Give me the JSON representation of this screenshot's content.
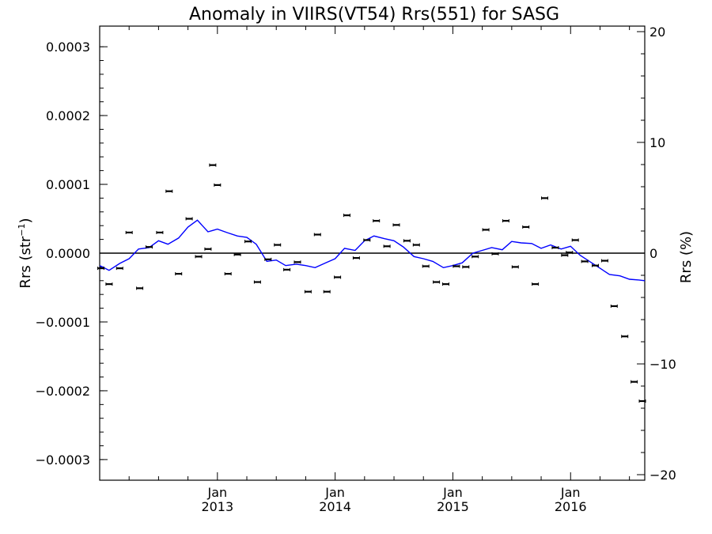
{
  "chart_data": {
    "type": "scatter",
    "title": "Anomaly in VIIRS(VT54) Rrs(551) for SASG",
    "ylabel_left": "Rrs (str",
    "ylabel_left_sup": "−1",
    "ylabel_left_close": ")",
    "ylabel_right": "Rrs (%)",
    "xlim": [
      2012.0,
      2016.63
    ],
    "ylim_left": [
      -0.00033,
      0.00033
    ],
    "ylim_right": [
      -20.5,
      20.5
    ],
    "left_ticks": [
      {
        "value": 0.0003,
        "label": "0.0003"
      },
      {
        "value": 0.0002,
        "label": "0.0002"
      },
      {
        "value": 0.0001,
        "label": "0.0001"
      },
      {
        "value": 0.0,
        "label": "0.0000"
      },
      {
        "value": -0.0001,
        "label": "−0.0001"
      },
      {
        "value": -0.0002,
        "label": "−0.0002"
      },
      {
        "value": -0.0003,
        "label": "−0.0003"
      }
    ],
    "right_ticks": [
      {
        "value": 20,
        "label": "20"
      },
      {
        "value": 10,
        "label": "10"
      },
      {
        "value": 0,
        "label": "0"
      },
      {
        "value": -10,
        "label": "−10"
      },
      {
        "value": -20,
        "label": "−20"
      }
    ],
    "x_ticks": [
      {
        "value": 2013.0,
        "label_top": "Jan",
        "label_bottom": "2013"
      },
      {
        "value": 2014.0,
        "label_top": "Jan",
        "label_bottom": "2014"
      },
      {
        "value": 2015.0,
        "label_top": "Jan",
        "label_bottom": "2015"
      },
      {
        "value": 2016.0,
        "label_top": "Jan",
        "label_bottom": "2016"
      }
    ],
    "zero_line": 0,
    "series": [
      {
        "kind": "points",
        "color": "#000000",
        "x": [
          2012.01,
          2012.08,
          2012.17,
          2012.25,
          2012.34,
          2012.42,
          2012.51,
          2012.59,
          2012.67,
          2012.76,
          2012.84,
          2012.92,
          2012.96,
          2013.0,
          2013.09,
          2013.17,
          2013.26,
          2013.34,
          2013.43,
          2013.51,
          2013.59,
          2013.68,
          2013.77,
          2013.85,
          2013.93,
          2014.02,
          2014.1,
          2014.18,
          2014.27,
          2014.35,
          2014.44,
          2014.52,
          2014.61,
          2014.69,
          2014.77,
          2014.86,
          2014.94,
          2015.03,
          2015.11,
          2015.19,
          2015.28,
          2015.36,
          2015.45,
          2015.53,
          2015.62,
          2015.7,
          2015.78,
          2015.87,
          2015.95,
          2015.99,
          2016.04,
          2016.12,
          2016.21,
          2016.29,
          2016.37,
          2016.46,
          2016.54,
          2016.61
        ],
        "y": [
          -2.2e-05,
          -4.5e-05,
          -2.2e-05,
          3e-05,
          -5.1e-05,
          9e-06,
          3e-05,
          9e-05,
          -3e-05,
          5e-05,
          -5e-06,
          6e-06,
          0.000128,
          9.9e-05,
          -3e-05,
          -2e-06,
          1.7e-05,
          -4.2e-05,
          -9e-06,
          1.2e-05,
          -2.4e-05,
          -1.3e-05,
          -5.6e-05,
          2.7e-05,
          -5.6e-05,
          -3.5e-05,
          5.5e-05,
          -7e-06,
          1.9e-05,
          4.7e-05,
          1e-05,
          4.1e-05,
          1.8e-05,
          1.2e-05,
          -1.9e-05,
          -4.2e-05,
          -4.5e-05,
          -1.9e-05,
          -2e-05,
          -5e-06,
          3.4e-05,
          -1e-06,
          4.7e-05,
          -2e-05,
          3.8e-05,
          -4.5e-05,
          8e-05,
          8e-06,
          -3e-06,
          1e-06,
          1.9e-05,
          -1.2e-05,
          -1.8e-05,
          -1.1e-05,
          -7.7e-05,
          -0.000121,
          -0.000187,
          -0.000215
        ]
      },
      {
        "kind": "line",
        "color": "#0000ff",
        "x": [
          2012.0,
          2012.08,
          2012.17,
          2012.25,
          2012.33,
          2012.42,
          2012.5,
          2012.58,
          2012.67,
          2012.75,
          2012.83,
          2012.92,
          2012.96,
          2013.0,
          2013.08,
          2013.17,
          2013.25,
          2013.33,
          2013.42,
          2013.5,
          2013.58,
          2013.67,
          2013.75,
          2013.83,
          2013.92,
          2014.0,
          2014.08,
          2014.17,
          2014.25,
          2014.33,
          2014.42,
          2014.5,
          2014.58,
          2014.67,
          2014.75,
          2014.83,
          2014.92,
          2015.0,
          2015.08,
          2015.17,
          2015.25,
          2015.33,
          2015.42,
          2015.5,
          2015.58,
          2015.67,
          2015.75,
          2015.83,
          2015.92,
          2016.0,
          2016.08,
          2016.17,
          2016.25,
          2016.33,
          2016.42,
          2016.5,
          2016.58,
          2016.63
        ],
        "y": [
          -1.8e-05,
          -2.5e-05,
          -1.5e-05,
          -8e-06,
          6e-06,
          8e-06,
          1.8e-05,
          1.3e-05,
          2.2e-05,
          3.8e-05,
          4.8e-05,
          3.1e-05,
          3.3e-05,
          3.5e-05,
          3e-05,
          2.5e-05,
          2.3e-05,
          1.3e-05,
          -1.2e-05,
          -1e-05,
          -1.8e-05,
          -1.6e-05,
          -1.8e-05,
          -2.1e-05,
          -1.4e-05,
          -8e-06,
          7e-06,
          4e-06,
          1.8e-05,
          2.5e-05,
          2.1e-05,
          1.8e-05,
          9e-06,
          -5e-06,
          -8e-06,
          -1.2e-05,
          -2.1e-05,
          -1.8e-05,
          -1.4e-05,
          0.0,
          4e-06,
          8e-06,
          5e-06,
          1.7e-05,
          1.5e-05,
          1.4e-05,
          7e-06,
          1.2e-05,
          6e-06,
          1e-05,
          -3e-06,
          -1.3e-05,
          -2.2e-05,
          -3.1e-05,
          -3.3e-05,
          -3.8e-05,
          -3.9e-05,
          -4e-05
        ]
      }
    ]
  }
}
